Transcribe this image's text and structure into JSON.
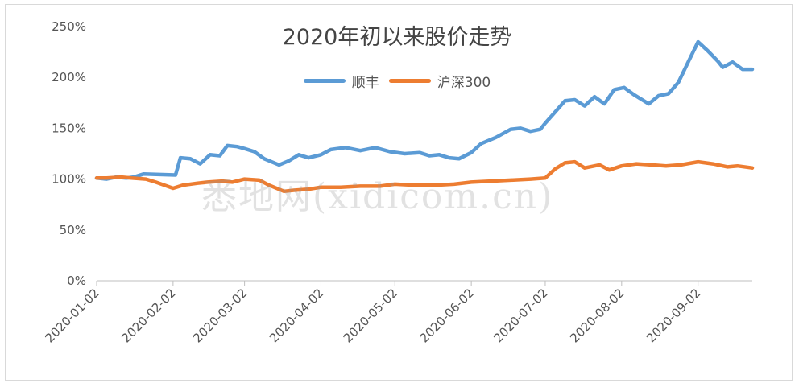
{
  "chart_data": {
    "type": "line",
    "title": "2020年初以来股价走势",
    "x_tick_labels": [
      "2020-01-02",
      "2020-02-02",
      "2020-03-02",
      "2020-04-02",
      "2020-05-02",
      "2020-06-02",
      "2020-07-02",
      "2020-08-02",
      "2020-09-02"
    ],
    "y_tick_labels": [
      "0%",
      "50%",
      "100%",
      "150%",
      "200%",
      "250%"
    ],
    "ylim": [
      0,
      250
    ],
    "xlim": [
      "2020-01-02",
      "2020-09-24"
    ],
    "legend_position": "top-center",
    "grid": false,
    "series": [
      {
        "name": "顺丰",
        "color": "#5b9bd5",
        "points": [
          [
            "2020-01-02",
            101
          ],
          [
            "2020-01-06",
            100
          ],
          [
            "2020-01-10",
            102
          ],
          [
            "2020-01-14",
            101
          ],
          [
            "2020-01-17",
            102
          ],
          [
            "2020-01-21",
            105
          ],
          [
            "2020-02-03",
            104
          ],
          [
            "2020-02-05",
            121
          ],
          [
            "2020-02-09",
            120
          ],
          [
            "2020-02-13",
            115
          ],
          [
            "2020-02-17",
            124
          ],
          [
            "2020-02-21",
            123
          ],
          [
            "2020-02-24",
            133
          ],
          [
            "2020-02-28",
            132
          ],
          [
            "2020-03-02",
            130
          ],
          [
            "2020-03-06",
            127
          ],
          [
            "2020-03-10",
            120
          ],
          [
            "2020-03-16",
            114
          ],
          [
            "2020-03-20",
            118
          ],
          [
            "2020-03-24",
            124
          ],
          [
            "2020-03-28",
            121
          ],
          [
            "2020-04-02",
            124
          ],
          [
            "2020-04-06",
            129
          ],
          [
            "2020-04-12",
            131
          ],
          [
            "2020-04-18",
            128
          ],
          [
            "2020-04-24",
            131
          ],
          [
            "2020-04-30",
            127
          ],
          [
            "2020-05-06",
            125
          ],
          [
            "2020-05-12",
            126
          ],
          [
            "2020-05-16",
            123
          ],
          [
            "2020-05-20",
            124
          ],
          [
            "2020-05-24",
            121
          ],
          [
            "2020-05-28",
            120
          ],
          [
            "2020-06-02",
            126
          ],
          [
            "2020-06-06",
            135
          ],
          [
            "2020-06-12",
            141
          ],
          [
            "2020-06-18",
            149
          ],
          [
            "2020-06-22",
            150
          ],
          [
            "2020-06-26",
            147
          ],
          [
            "2020-06-30",
            149
          ],
          [
            "2020-07-02",
            155
          ],
          [
            "2020-07-06",
            166
          ],
          [
            "2020-07-10",
            177
          ],
          [
            "2020-07-14",
            178
          ],
          [
            "2020-07-18",
            172
          ],
          [
            "2020-07-22",
            181
          ],
          [
            "2020-07-26",
            174
          ],
          [
            "2020-07-30",
            188
          ],
          [
            "2020-08-03",
            190
          ],
          [
            "2020-08-07",
            183
          ],
          [
            "2020-08-13",
            174
          ],
          [
            "2020-08-17",
            182
          ],
          [
            "2020-08-21",
            184
          ],
          [
            "2020-08-25",
            195
          ],
          [
            "2020-08-29",
            215
          ],
          [
            "2020-09-02",
            235
          ],
          [
            "2020-09-06",
            226
          ],
          [
            "2020-09-10",
            216
          ],
          [
            "2020-09-12",
            210
          ],
          [
            "2020-09-16",
            215
          ],
          [
            "2020-09-20",
            208
          ],
          [
            "2020-09-24",
            208
          ]
        ]
      },
      {
        "name": "沪深300",
        "color": "#ed7d31",
        "points": [
          [
            "2020-01-02",
            101
          ],
          [
            "2020-01-06",
            101
          ],
          [
            "2020-01-12",
            102
          ],
          [
            "2020-01-16",
            101
          ],
          [
            "2020-01-22",
            100
          ],
          [
            "2020-01-26",
            97
          ],
          [
            "2020-02-02",
            91
          ],
          [
            "2020-02-06",
            94
          ],
          [
            "2020-02-12",
            96
          ],
          [
            "2020-02-16",
            97
          ],
          [
            "2020-02-22",
            98
          ],
          [
            "2020-02-26",
            97
          ],
          [
            "2020-03-02",
            100
          ],
          [
            "2020-03-08",
            99
          ],
          [
            "2020-03-12",
            94
          ],
          [
            "2020-03-18",
            88
          ],
          [
            "2020-03-22",
            89
          ],
          [
            "2020-03-28",
            90
          ],
          [
            "2020-04-02",
            92
          ],
          [
            "2020-04-10",
            92
          ],
          [
            "2020-04-18",
            93
          ],
          [
            "2020-04-26",
            93
          ],
          [
            "2020-05-02",
            95
          ],
          [
            "2020-05-10",
            94
          ],
          [
            "2020-05-18",
            94
          ],
          [
            "2020-05-26",
            95
          ],
          [
            "2020-06-02",
            97
          ],
          [
            "2020-06-10",
            98
          ],
          [
            "2020-06-18",
            99
          ],
          [
            "2020-06-26",
            100
          ],
          [
            "2020-07-02",
            101
          ],
          [
            "2020-07-06",
            110
          ],
          [
            "2020-07-10",
            116
          ],
          [
            "2020-07-14",
            117
          ],
          [
            "2020-07-18",
            111
          ],
          [
            "2020-07-24",
            114
          ],
          [
            "2020-07-28",
            109
          ],
          [
            "2020-08-02",
            113
          ],
          [
            "2020-08-08",
            115
          ],
          [
            "2020-08-14",
            114
          ],
          [
            "2020-08-20",
            113
          ],
          [
            "2020-08-26",
            114
          ],
          [
            "2020-09-02",
            117
          ],
          [
            "2020-09-08",
            115
          ],
          [
            "2020-09-14",
            112
          ],
          [
            "2020-09-18",
            113
          ],
          [
            "2020-09-24",
            111
          ]
        ]
      }
    ]
  },
  "watermark": "悉地网(xidicom.cn)"
}
